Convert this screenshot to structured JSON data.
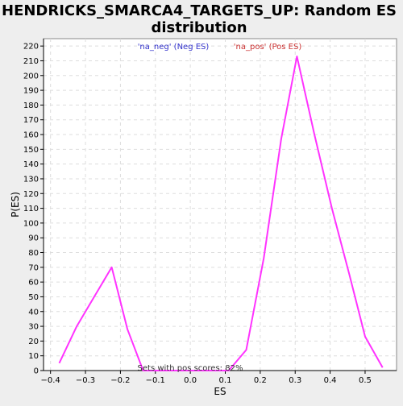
{
  "chart_data": {
    "type": "line",
    "title_lines": [
      "HENDRICKS_SMARCA4_TARGETS_UP: Random ES",
      "distribution"
    ],
    "xlabel": "ES",
    "ylabel": "P(ES)",
    "xlim": [
      -0.42,
      0.59
    ],
    "ylim": [
      0,
      225
    ],
    "grid": true,
    "x_ticks": [
      -0.4,
      -0.3,
      -0.2,
      -0.1,
      0.0,
      0.1,
      0.2,
      0.3,
      0.4,
      0.5
    ],
    "x_tick_labels": [
      "−0.4",
      "−0.3",
      "−0.2",
      "−0.1",
      "0.0",
      "0.1",
      "0.2",
      "0.3",
      "0.4",
      "0.5"
    ],
    "y_ticks": [
      0,
      10,
      20,
      30,
      40,
      50,
      60,
      70,
      80,
      90,
      100,
      110,
      120,
      130,
      140,
      150,
      160,
      170,
      180,
      190,
      200,
      210,
      220
    ],
    "y_tick_labels": [
      "0",
      "10",
      "20",
      "30",
      "40",
      "50",
      "60",
      "70",
      "80",
      "90",
      "100",
      "110",
      "120",
      "130",
      "140",
      "150",
      "160",
      "170",
      "180",
      "190",
      "200",
      "210",
      "220"
    ],
    "legend": [
      {
        "text": "'na_neg' (Neg ES)",
        "color": "#3333cc"
      },
      {
        "text": "'na_pos' (Pos ES)",
        "color": "#cc3333"
      }
    ],
    "annotation": "Sets with pos scores: 82%",
    "series": [
      {
        "color": "#ff33ff",
        "x": [
          -0.375,
          -0.325,
          -0.275,
          -0.225,
          -0.18,
          -0.135,
          0.11,
          0.16,
          0.21,
          0.26,
          0.305,
          0.355,
          0.405,
          0.455,
          0.5,
          0.55
        ],
        "y": [
          5,
          30,
          50,
          70,
          28,
          0,
          0,
          14,
          76,
          157,
          213,
          160,
          110,
          65,
          23,
          2
        ]
      }
    ]
  }
}
